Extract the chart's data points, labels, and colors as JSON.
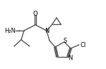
{
  "bg_color": "#ffffff",
  "line_color": "#555555",
  "text_color": "#000000",
  "line_width": 1.0,
  "font_size": 6.0,
  "fig_width": 1.5,
  "fig_height": 0.97,
  "dpi": 100,
  "xlim": [
    0,
    150
  ],
  "ylim": [
    0,
    97
  ]
}
